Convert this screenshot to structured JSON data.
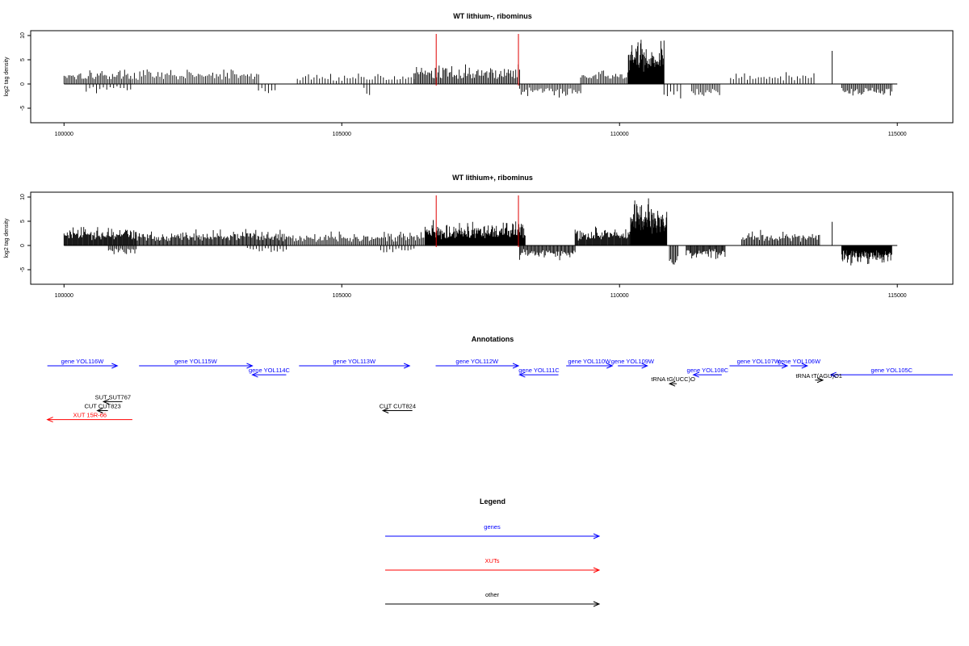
{
  "chart_data": [
    {
      "type": "bar",
      "title": "WT lithium-, ribominus",
      "ylabel": "log2 tag density",
      "xlim": [
        99400,
        116000
      ],
      "ylim": [
        -8,
        11
      ],
      "x_ticks": [
        100000,
        105000,
        110000,
        115000
      ],
      "x_tick_labels": [
        "100000",
        "105000",
        "110000",
        "115000"
      ],
      "y_ticks": [
        10,
        5,
        0,
        -5
      ],
      "y_tick_labels": [
        "10",
        "5",
        "0",
        "-5"
      ],
      "baseline_range": [
        100000,
        115000
      ],
      "reference_lines": [
        106700,
        108180
      ],
      "reference_line_color": "#e00000",
      "bar_color": "#000000",
      "segments": [
        {
          "start": 100000,
          "end": 101200,
          "sign": 1,
          "amp": 2.2,
          "dens": 0.55
        },
        {
          "start": 100400,
          "end": 101200,
          "sign": -1,
          "amp": 1.2,
          "dens": 0.25
        },
        {
          "start": 101200,
          "end": 103500,
          "sign": 1,
          "amp": 2.1,
          "dens": 0.45
        },
        {
          "start": 103500,
          "end": 103800,
          "sign": -1,
          "amp": 1.6,
          "dens": 0.3
        },
        {
          "start": 104200,
          "end": 106300,
          "sign": 1,
          "amp": 1.6,
          "dens": 0.3
        },
        {
          "start": 105400,
          "end": 105500,
          "sign": -1,
          "amp": 1.8,
          "dens": 0.4
        },
        {
          "start": 106300,
          "end": 108200,
          "sign": 1,
          "amp": 2.6,
          "dens": 0.65
        },
        {
          "start": 108200,
          "end": 109300,
          "sign": -1,
          "amp": 1.9,
          "dens": 0.5
        },
        {
          "start": 109300,
          "end": 110150,
          "sign": 1,
          "amp": 1.9,
          "dens": 0.55
        },
        {
          "start": 110150,
          "end": 110800,
          "sign": 1,
          "amp": 6.4,
          "dens": 1.6
        },
        {
          "start": 110800,
          "end": 111100,
          "sign": -1,
          "amp": 2.5,
          "dens": 0.3
        },
        {
          "start": 111300,
          "end": 111800,
          "sign": -1,
          "amp": 2.2,
          "dens": 0.5
        },
        {
          "start": 112000,
          "end": 113500,
          "sign": 1,
          "amp": 1.6,
          "dens": 0.3
        },
        {
          "start": 113800,
          "end": 113850,
          "sign": 1,
          "amp": 5.2,
          "dens": 0.3
        },
        {
          "start": 114000,
          "end": 114900,
          "sign": -1,
          "amp": 2.0,
          "dens": 0.6
        }
      ]
    },
    {
      "type": "bar",
      "title": "WT lithium+, ribominus",
      "ylabel": "log2 tag density",
      "xlim": [
        99400,
        116000
      ],
      "ylim": [
        -8,
        11
      ],
      "x_ticks": [
        100000,
        105000,
        110000,
        115000
      ],
      "x_tick_labels": [
        "100000",
        "105000",
        "110000",
        "115000"
      ],
      "y_ticks": [
        10,
        5,
        0,
        -5
      ],
      "y_tick_labels": [
        "10",
        "5",
        "0",
        "-5"
      ],
      "baseline_range": [
        100000,
        115000
      ],
      "reference_lines": [
        106700,
        108180
      ],
      "reference_line_color": "#e00000",
      "bar_color": "#000000",
      "segments": [
        {
          "start": 100000,
          "end": 101300,
          "sign": 1,
          "amp": 2.7,
          "dens": 1.0
        },
        {
          "start": 100800,
          "end": 101300,
          "sign": -1,
          "amp": 1.3,
          "dens": 0.6
        },
        {
          "start": 101300,
          "end": 104000,
          "sign": 1,
          "amp": 2.3,
          "dens": 0.8
        },
        {
          "start": 103300,
          "end": 104000,
          "sign": -1,
          "amp": 1.2,
          "dens": 0.3
        },
        {
          "start": 104000,
          "end": 106500,
          "sign": 1,
          "amp": 2.0,
          "dens": 0.6
        },
        {
          "start": 105700,
          "end": 106300,
          "sign": -1,
          "amp": 1.2,
          "dens": 0.3
        },
        {
          "start": 106500,
          "end": 108300,
          "sign": 1,
          "amp": 3.4,
          "dens": 1.3
        },
        {
          "start": 108200,
          "end": 109200,
          "sign": -1,
          "amp": 2.0,
          "dens": 0.8
        },
        {
          "start": 109200,
          "end": 110200,
          "sign": 1,
          "amp": 2.6,
          "dens": 1.0
        },
        {
          "start": 110200,
          "end": 110850,
          "sign": 1,
          "amp": 6.4,
          "dens": 1.8
        },
        {
          "start": 110900,
          "end": 111050,
          "sign": -1,
          "amp": 4.2,
          "dens": 0.8
        },
        {
          "start": 111200,
          "end": 111900,
          "sign": -1,
          "amp": 2.0,
          "dens": 0.9
        },
        {
          "start": 112200,
          "end": 113600,
          "sign": 1,
          "amp": 2.0,
          "dens": 0.7
        },
        {
          "start": 113800,
          "end": 113850,
          "sign": 1,
          "amp": 5.6,
          "dens": 0.3
        },
        {
          "start": 114000,
          "end": 114900,
          "sign": -1,
          "amp": 2.6,
          "dens": 1.6
        }
      ]
    }
  ],
  "annotations": {
    "title": "Annotations",
    "colors": {
      "genes": "#0000ff",
      "xuts": "#ff0000",
      "other": "#000000"
    },
    "features": [
      {
        "label": "gene YOL116W",
        "kind": "genes",
        "start": 99700,
        "end": 100960,
        "strand": "+",
        "row": 0
      },
      {
        "label": "gene YOL115W",
        "kind": "genes",
        "start": 101350,
        "end": 103390,
        "strand": "+",
        "row": 0
      },
      {
        "label": "gene YOL114C",
        "kind": "genes",
        "start": 103390,
        "end": 104000,
        "strand": "-",
        "row": 1
      },
      {
        "label": "gene YOL113W",
        "kind": "genes",
        "start": 104230,
        "end": 106220,
        "strand": "+",
        "row": 0
      },
      {
        "label": "gene YOL112W",
        "kind": "genes",
        "start": 106690,
        "end": 108180,
        "strand": "+",
        "row": 0
      },
      {
        "label": "gene YOL111C",
        "kind": "genes",
        "start": 108200,
        "end": 108900,
        "strand": "-",
        "row": 1
      },
      {
        "label": "gene YOL110W",
        "kind": "genes",
        "start": 109040,
        "end": 109870,
        "strand": "+",
        "row": 0
      },
      {
        "label": "gene YOL109W",
        "kind": "genes",
        "start": 109970,
        "end": 110500,
        "strand": "+",
        "row": 0
      },
      {
        "label": "gene YOL108C",
        "kind": "genes",
        "start": 111330,
        "end": 111840,
        "strand": "-",
        "row": 1
      },
      {
        "label": "gene YOL107W",
        "kind": "genes",
        "start": 111980,
        "end": 113020,
        "strand": "+",
        "row": 0
      },
      {
        "label": "gene YOL106W",
        "kind": "genes",
        "start": 113080,
        "end": 113380,
        "strand": "+",
        "row": 0
      },
      {
        "label": "gene YOL105C",
        "kind": "genes",
        "start": 113800,
        "end": 116000,
        "strand": "-",
        "row": 1
      },
      {
        "label": "tRNA tG(UCC)O",
        "kind": "other",
        "start": 110900,
        "end": 111030,
        "strand": "-",
        "row": 2
      },
      {
        "label": "tRNA tT(AGU)O1",
        "kind": "other",
        "start": 113520,
        "end": 113660,
        "strand": "+",
        "row": 1.6
      },
      {
        "label": "SUT SUT767",
        "kind": "other",
        "start": 100710,
        "end": 101050,
        "strand": "-",
        "row": 4
      },
      {
        "label": "CUT CUT823",
        "kind": "other",
        "start": 100600,
        "end": 100790,
        "strand": "-",
        "row": 5
      },
      {
        "label": "CUT CUT824",
        "kind": "other",
        "start": 105740,
        "end": 106270,
        "strand": "-",
        "row": 5
      },
      {
        "label": "XUT 15R-66",
        "kind": "xuts",
        "start": 99700,
        "end": 101230,
        "strand": "-",
        "row": 6
      }
    ]
  },
  "legend": {
    "title": "Legend",
    "items": [
      {
        "label": "genes",
        "color": "#0000ff"
      },
      {
        "label": "XUTs",
        "color": "#ff0000"
      },
      {
        "label": "other",
        "color": "#000000"
      }
    ]
  }
}
